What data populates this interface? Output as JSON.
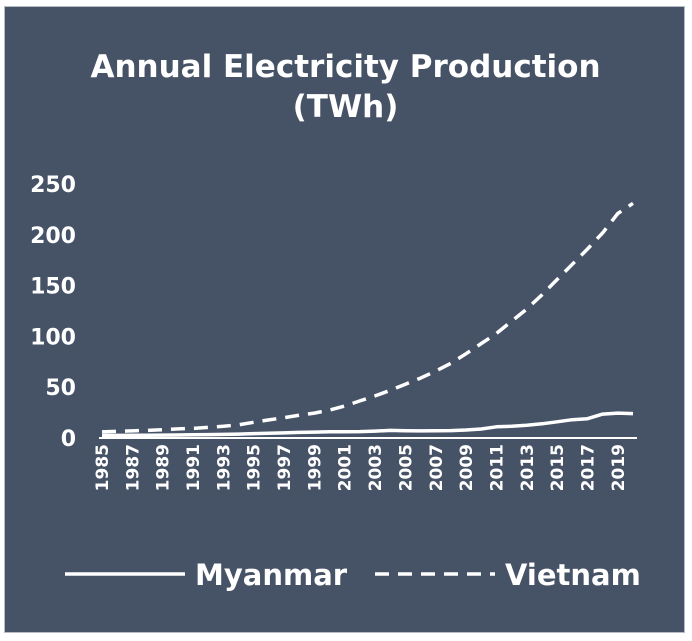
{
  "chart_data": {
    "type": "line",
    "title_line1": "Annual Electricity Production",
    "title_line2": "(TWh)",
    "xlabel": "",
    "ylabel": "",
    "ylim": [
      0,
      250
    ],
    "yticks": [
      0,
      50,
      100,
      150,
      200,
      250
    ],
    "x": [
      1985,
      1986,
      1987,
      1988,
      1989,
      1990,
      1991,
      1992,
      1993,
      1994,
      1995,
      1996,
      1997,
      1998,
      1999,
      2000,
      2001,
      2002,
      2003,
      2004,
      2005,
      2006,
      2007,
      2008,
      2009,
      2010,
      2011,
      2012,
      2013,
      2014,
      2015,
      2016,
      2017,
      2018,
      2019,
      2020
    ],
    "xtick_labels": [
      "1985",
      "1987",
      "1989",
      "1991",
      "1993",
      "1995",
      "1997",
      "1999",
      "2001",
      "2003",
      "2005",
      "2007",
      "2009",
      "2011",
      "2013",
      "2015",
      "2017",
      "2019"
    ],
    "series": [
      {
        "name": "Myanmar",
        "style": "solid",
        "color": "#ffffff",
        "values": [
          1.5,
          1.6,
          1.7,
          1.8,
          1.9,
          2.0,
          2.2,
          2.4,
          2.6,
          2.9,
          3.3,
          3.6,
          4.0,
          4.5,
          4.8,
          5.1,
          5.2,
          5.3,
          5.8,
          6.5,
          6.2,
          6.0,
          6.1,
          6.3,
          6.9,
          7.9,
          10.0,
          10.5,
          11.5,
          13.0,
          15.0,
          17.0,
          18.0,
          22.5,
          23.5,
          23.0
        ]
      },
      {
        "name": "Vietnam",
        "style": "dashed",
        "color": "#ffffff",
        "values": [
          5.0,
          5.6,
          6.0,
          6.5,
          7.2,
          8.0,
          8.5,
          9.5,
          10.5,
          12.0,
          14.5,
          16.8,
          19.0,
          21.5,
          23.5,
          26.5,
          30.5,
          35.5,
          40.5,
          46.0,
          52.0,
          58.0,
          65.0,
          72.5,
          82.0,
          92.0,
          102.0,
          114.0,
          126.0,
          140.0,
          155.0,
          170.0,
          185.0,
          201.0,
          220.0,
          230.0
        ]
      }
    ],
    "legend": "bottom"
  }
}
